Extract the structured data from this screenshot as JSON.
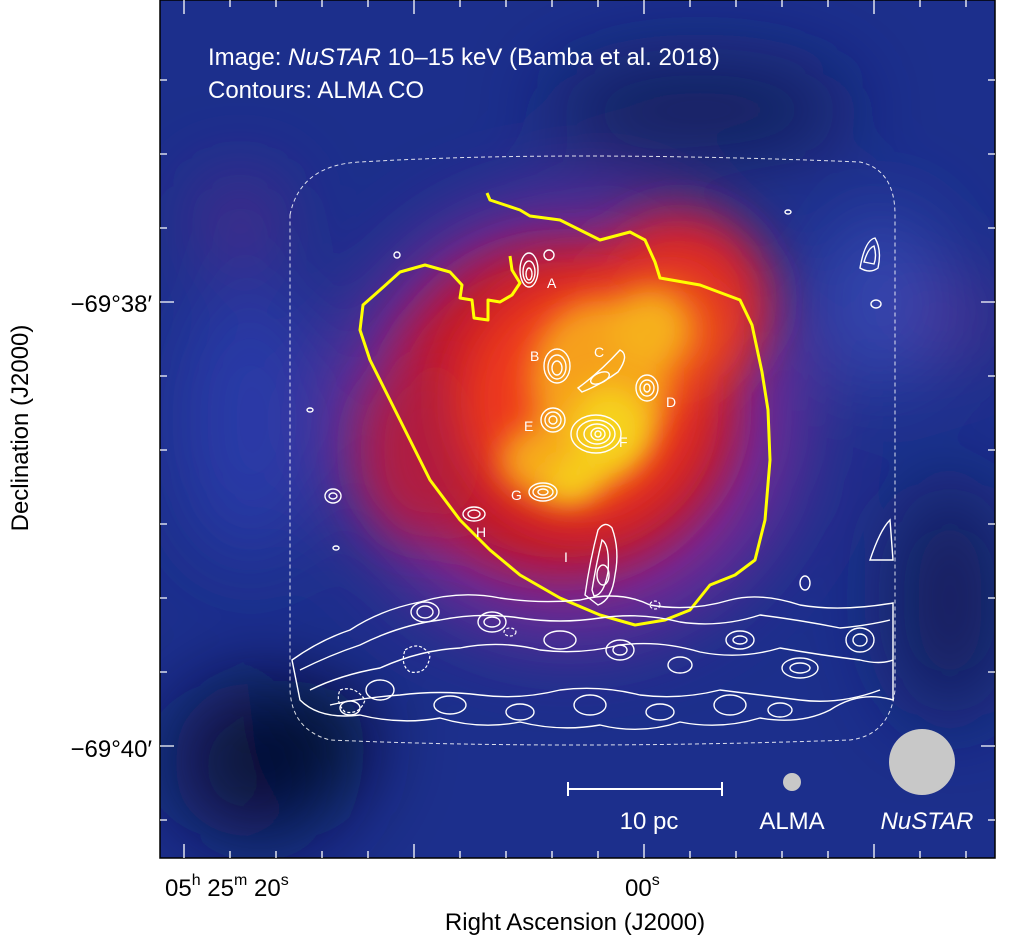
{
  "image_title_prefix": "Image: ",
  "image_title_instrument": "NuSTAR",
  "image_title_rest": " 10–15 keV (Bamba et al. 2018)",
  "contours_title": "Contours: ALMA CO",
  "clump_labels": [
    "A",
    "B",
    "C",
    "D",
    "E",
    "F",
    "G",
    "H",
    "I"
  ],
  "scale_bar_label": "10 pc",
  "beam_alma_label": "ALMA",
  "beam_nustar_label": "NuSTAR",
  "dec_tick_1": "−69°38′",
  "dec_tick_2": "−69°40′",
  "ra_tick_1": {
    "h": "05",
    "h_unit": "h",
    "m": " 25",
    "m_unit": "m",
    "s": " 20",
    "s_unit": "s"
  },
  "ra_tick_2": {
    "s": "00",
    "s_unit": "s"
  },
  "xlabel": "Right Ascension (J2000)",
  "ylabel": "Declination (J2000)",
  "colors": {
    "background": "#1c2f8c",
    "hot_core": "#f6d21e",
    "shell_outline": "#ffff00",
    "contours": "#ffffff",
    "beam": "#c8c8c8"
  }
}
